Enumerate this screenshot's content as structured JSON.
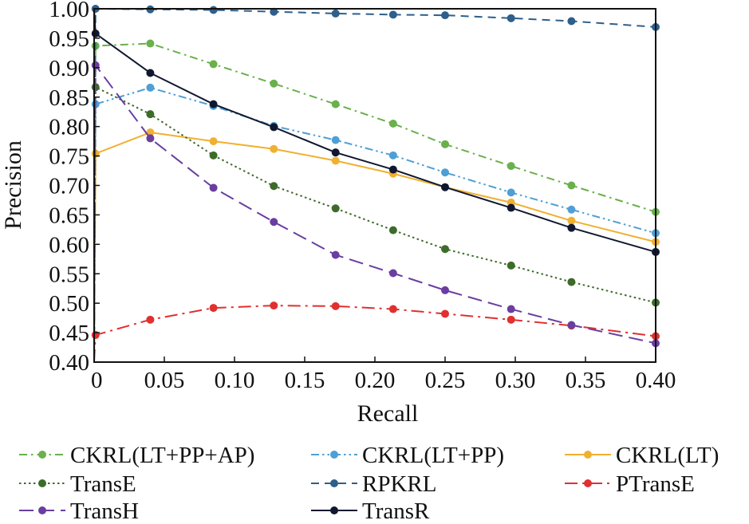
{
  "chart_data": {
    "type": "line",
    "title": "",
    "xlabel": "Recall",
    "ylabel": "Precision",
    "xlim": [
      0,
      0.4
    ],
    "ylim": [
      0.4,
      1.0
    ],
    "x_ticks": [
      "0",
      "0.05",
      "0.10",
      "0.15",
      "0.20",
      "0.25",
      "0.30",
      "0.35",
      "0.40"
    ],
    "y_ticks": [
      "0.40",
      "0.45",
      "0.50",
      "0.55",
      "0.60",
      "0.65",
      "0.70",
      "0.75",
      "0.80",
      "0.85",
      "0.90",
      "0.95",
      "1.00"
    ],
    "grid": false,
    "legend_position": "bottom",
    "series": [
      {
        "name": "CKRL(LT+PP+AP)",
        "color": "#6ab04c",
        "dash": "dashdot",
        "x": [
          0,
          0.001,
          0.04,
          0.085,
          0.128,
          0.172,
          0.213,
          0.25,
          0.297,
          0.34,
          0.4
        ],
        "y": [
          0.4,
          0.937,
          0.941,
          0.906,
          0.873,
          0.838,
          0.805,
          0.77,
          0.733,
          0.7,
          0.655
        ]
      },
      {
        "name": "CKRL(LT+PP)",
        "color": "#4f9fd4",
        "dash": "dashdotdot",
        "x": [
          0,
          0.001,
          0.04,
          0.085,
          0.128,
          0.172,
          0.213,
          0.25,
          0.297,
          0.34,
          0.4
        ],
        "y": [
          0.4,
          0.838,
          0.866,
          0.835,
          0.801,
          0.777,
          0.751,
          0.722,
          0.688,
          0.659,
          0.619
        ]
      },
      {
        "name": "CKRL(LT)",
        "color": "#f0b030",
        "dash": "solid",
        "x": [
          0,
          0.001,
          0.04,
          0.085,
          0.128,
          0.172,
          0.213,
          0.25,
          0.297,
          0.34,
          0.4
        ],
        "y": [
          0.4,
          0.754,
          0.79,
          0.775,
          0.762,
          0.742,
          0.72,
          0.697,
          0.671,
          0.64,
          0.604
        ]
      },
      {
        "name": "TransE",
        "color": "#3d6b2a",
        "dash": "dotted",
        "x": [
          0,
          0.001,
          0.04,
          0.085,
          0.128,
          0.172,
          0.213,
          0.25,
          0.297,
          0.34,
          0.4
        ],
        "y": [
          0.4,
          0.867,
          0.821,
          0.751,
          0.699,
          0.661,
          0.624,
          0.592,
          0.564,
          0.536,
          0.501
        ]
      },
      {
        "name": "RPKRL",
        "color": "#2e5f8a",
        "dash": "dashed",
        "x": [
          0,
          0.001,
          0.04,
          0.085,
          0.128,
          0.172,
          0.213,
          0.25,
          0.297,
          0.34,
          0.4
        ],
        "y": [
          0.4,
          1.0,
          0.999,
          0.998,
          0.995,
          0.992,
          0.99,
          0.989,
          0.984,
          0.979,
          0.969
        ]
      },
      {
        "name": "PTransE",
        "color": "#e03030",
        "dash": "longdashdot",
        "x": [
          0,
          0.001,
          0.04,
          0.085,
          0.128,
          0.172,
          0.213,
          0.25,
          0.297,
          0.34,
          0.4
        ],
        "y": [
          0.4,
          0.446,
          0.472,
          0.492,
          0.496,
          0.495,
          0.49,
          0.482,
          0.472,
          0.462,
          0.444
        ]
      },
      {
        "name": "TransH",
        "color": "#6a3ea1",
        "dash": "longdash",
        "x": [
          0,
          0.001,
          0.04,
          0.085,
          0.128,
          0.172,
          0.213,
          0.25,
          0.297,
          0.34,
          0.4
        ],
        "y": [
          0.4,
          0.904,
          0.78,
          0.696,
          0.638,
          0.582,
          0.551,
          0.522,
          0.49,
          0.463,
          0.432
        ]
      },
      {
        "name": "TransR",
        "color": "#101830",
        "dash": "solid",
        "x": [
          0,
          0.001,
          0.04,
          0.085,
          0.128,
          0.172,
          0.213,
          0.25,
          0.297,
          0.34,
          0.4
        ],
        "y": [
          1.0,
          0.958,
          0.891,
          0.838,
          0.799,
          0.756,
          0.727,
          0.697,
          0.662,
          0.628,
          0.587
        ]
      }
    ]
  }
}
